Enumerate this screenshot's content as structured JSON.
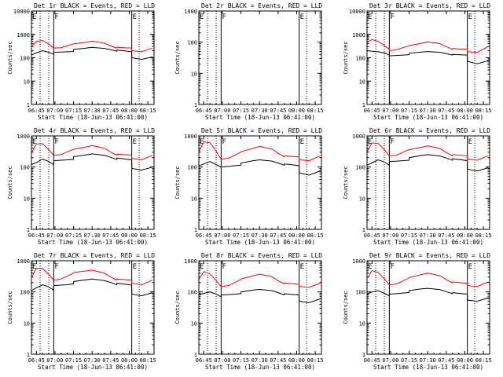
{
  "chart_data": {
    "type": "line",
    "grid": false,
    "legend_placement": "none",
    "x_tick_labels": [
      "06:45",
      "07:00",
      "07:15",
      "07:30",
      "07:45",
      "08:00",
      "08:15"
    ],
    "x_tick_minutes": [
      0,
      15,
      30,
      45,
      60,
      75,
      90
    ],
    "xlim_minutes": [
      -4,
      95
    ],
    "xlabel": "Start Time (18-Jun-13 06:41:00)",
    "ylabel": "Counts/sec",
    "yscale": "log",
    "dotted_lines_minutes": [
      3,
      10,
      83
    ],
    "solid_lines_minutes": [
      14,
      77
    ],
    "region_markers": [
      {
        "text": "E",
        "minute": -4
      },
      {
        "text": "F",
        "minute": 14
      },
      {
        "text": "E",
        "minute": 77
      }
    ],
    "series_colors": {
      "events": "#000000",
      "lld": "#ff0000"
    },
    "panels": [
      {
        "title": "Det 1r  BLACK = Events, RED = LLD",
        "ylim": [
          1,
          10000
        ],
        "y_tick_labels": [
          "10000",
          "1000",
          "100",
          "10",
          "1"
        ],
        "y_tick_values": [
          10000,
          1000,
          100,
          10,
          1
        ],
        "minutes": [
          -4,
          0,
          5,
          10,
          13.9,
          14.1,
          20,
          25,
          29.9,
          30.1,
          40,
          45,
          55,
          60,
          64.9,
          65.1,
          70,
          76.9,
          77.1,
          85,
          94
        ],
        "events": [
          130,
          160,
          200,
          170,
          140,
          170,
          175,
          180,
          185,
          225,
          260,
          280,
          250,
          220,
          190,
          210,
          200,
          180,
          100,
          85,
          110
        ],
        "lld": [
          300,
          500,
          550,
          380,
          260,
          260,
          270,
          330,
          390,
          390,
          460,
          510,
          420,
          320,
          260,
          280,
          270,
          260,
          200,
          180,
          260
        ]
      },
      {
        "title": "Det 2r  BLACK = Events, RED = LLD",
        "ylim": [
          1,
          1000
        ],
        "y_tick_labels": [
          "1000",
          "100",
          "10",
          "1"
        ],
        "y_tick_values": [
          1000,
          100,
          10,
          1
        ],
        "minutes": [],
        "events": [],
        "lld": []
      },
      {
        "title": "Det 3r  BLACK = Events, RED = LLD",
        "ylim": [
          1,
          10000
        ],
        "y_tick_labels": [
          "10000",
          "1000",
          "100",
          "10",
          "1"
        ],
        "y_tick_values": [
          10000,
          1000,
          100,
          10,
          1
        ],
        "minutes": [
          -4,
          0,
          5,
          10,
          13.9,
          14.1,
          20,
          25,
          29.9,
          30.1,
          40,
          45,
          55,
          60,
          64.9,
          65.1,
          70,
          76.9,
          77.1,
          85,
          94
        ],
        "events": [
          200,
          190,
          180,
          160,
          130,
          120,
          125,
          130,
          135,
          155,
          175,
          185,
          170,
          150,
          130,
          140,
          135,
          130,
          70,
          55,
          75
        ],
        "lld": [
          450,
          600,
          500,
          330,
          230,
          200,
          220,
          270,
          320,
          330,
          420,
          480,
          400,
          300,
          230,
          250,
          240,
          230,
          180,
          170,
          300
        ]
      },
      {
        "title": "Det 4r  BLACK = Events, RED = LLD",
        "ylim": [
          1,
          1000
        ],
        "y_tick_labels": [
          "1000",
          "100",
          "10",
          "1"
        ],
        "y_tick_values": [
          1000,
          100,
          10,
          1
        ],
        "minutes": [
          -4,
          0,
          5,
          10,
          13.9,
          14.1,
          20,
          25,
          29.9,
          30.1,
          40,
          45,
          55,
          60,
          64.9,
          65.1,
          70,
          76.9,
          77.1,
          85,
          94
        ],
        "events": [
          120,
          140,
          180,
          150,
          120,
          160,
          165,
          170,
          175,
          215,
          245,
          265,
          235,
          205,
          175,
          195,
          185,
          170,
          90,
          80,
          100
        ],
        "lld": [
          280,
          550,
          560,
          360,
          240,
          240,
          250,
          310,
          370,
          370,
          440,
          490,
          400,
          300,
          240,
          260,
          250,
          240,
          190,
          170,
          240
        ]
      },
      {
        "title": "Det 5r  BLACK = Events, RED = LLD",
        "ylim": [
          1,
          1000
        ],
        "y_tick_labels": [
          "1000",
          "100",
          "10",
          "1"
        ],
        "y_tick_values": [
          1000,
          100,
          10,
          1
        ],
        "minutes": [
          -4,
          0,
          5,
          10,
          13.9,
          14.1,
          20,
          25,
          29.9,
          30.1,
          40,
          45,
          55,
          60,
          64.9,
          65.1,
          70,
          76.9,
          77.1,
          85,
          94
        ],
        "events": [
          110,
          125,
          150,
          120,
          100,
          100,
          105,
          110,
          115,
          135,
          160,
          170,
          155,
          135,
          115,
          125,
          120,
          110,
          65,
          55,
          75
        ],
        "lld": [
          300,
          650,
          600,
          320,
          180,
          180,
          190,
          240,
          300,
          310,
          400,
          460,
          380,
          280,
          210,
          230,
          220,
          210,
          170,
          160,
          230
        ]
      },
      {
        "title": "Det 6r  BLACK = Events, RED = LLD",
        "ylim": [
          1,
          1000
        ],
        "y_tick_labels": [
          "1000",
          "100",
          "10",
          "1"
        ],
        "y_tick_values": [
          1000,
          100,
          10,
          1
        ],
        "minutes": [
          -4,
          0,
          5,
          10,
          13.9,
          14.1,
          20,
          25,
          29.9,
          30.1,
          40,
          45,
          55,
          60,
          64.9,
          65.1,
          70,
          76.9,
          77.1,
          85,
          94
        ],
        "events": [
          115,
          135,
          170,
          145,
          115,
          150,
          155,
          160,
          165,
          200,
          235,
          250,
          225,
          195,
          165,
          185,
          175,
          160,
          85,
          75,
          95
        ],
        "lld": [
          300,
          600,
          570,
          360,
          230,
          230,
          240,
          300,
          360,
          360,
          430,
          480,
          390,
          290,
          230,
          250,
          240,
          230,
          180,
          165,
          230
        ]
      },
      {
        "title": "Det 7r  BLACK = Events, RED = LLD",
        "ylim": [
          1,
          1000
        ],
        "y_tick_labels": [
          "1000",
          "100",
          "10",
          "1"
        ],
        "y_tick_values": [
          1000,
          100,
          10,
          1
        ],
        "minutes": [
          -4,
          0,
          5,
          10,
          13.9,
          14.1,
          20,
          25,
          29.9,
          30.1,
          40,
          45,
          55,
          60,
          64.9,
          65.1,
          70,
          76.9,
          77.1,
          85,
          94
        ],
        "events": [
          110,
          135,
          170,
          145,
          115,
          160,
          165,
          170,
          180,
          215,
          245,
          260,
          230,
          200,
          170,
          190,
          180,
          165,
          85,
          75,
          95
        ],
        "lld": [
          280,
          580,
          560,
          360,
          240,
          240,
          260,
          320,
          400,
          420,
          470,
          500,
          400,
          300,
          240,
          260,
          250,
          240,
          190,
          170,
          240
        ]
      },
      {
        "title": "Det 8r  BLACK = Events, RED = LLD",
        "ylim": [
          1,
          1000
        ],
        "y_tick_labels": [
          "1000",
          "100",
          "10",
          "1"
        ],
        "y_tick_values": [
          1000,
          100,
          10,
          1
        ],
        "minutes": [
          -4,
          0,
          5,
          10,
          13.9,
          14.1,
          20,
          25,
          29.9,
          30.1,
          40,
          45,
          55,
          60,
          64.9,
          65.1,
          70,
          76.9,
          77.1,
          85,
          94
        ],
        "events": [
          80,
          90,
          100,
          85,
          70,
          80,
          82,
          85,
          88,
          100,
          115,
          120,
          110,
          95,
          80,
          88,
          84,
          80,
          50,
          45,
          60
        ],
        "lld": [
          250,
          450,
          380,
          230,
          150,
          150,
          160,
          200,
          250,
          260,
          330,
          370,
          310,
          230,
          180,
          195,
          185,
          175,
          150,
          140,
          190
        ]
      },
      {
        "title": "Det 9r  BLACK = Events, RED = LLD",
        "ylim": [
          1,
          1000
        ],
        "y_tick_labels": [
          "1000",
          "100",
          "10",
          "1"
        ],
        "y_tick_values": [
          1000,
          100,
          10,
          1
        ],
        "minutes": [
          -4,
          0,
          5,
          10,
          13.9,
          14.1,
          20,
          25,
          29.9,
          30.1,
          40,
          45,
          55,
          60,
          64.9,
          65.1,
          70,
          76.9,
          77.1,
          85,
          94
        ],
        "events": [
          85,
          100,
          110,
          90,
          75,
          85,
          88,
          92,
          96,
          110,
          125,
          130,
          118,
          102,
          88,
          95,
          90,
          85,
          55,
          50,
          65
        ],
        "lld": [
          270,
          480,
          420,
          260,
          170,
          170,
          180,
          225,
          280,
          290,
          360,
          400,
          330,
          250,
          195,
          210,
          200,
          190,
          160,
          150,
          210
        ]
      }
    ]
  }
}
